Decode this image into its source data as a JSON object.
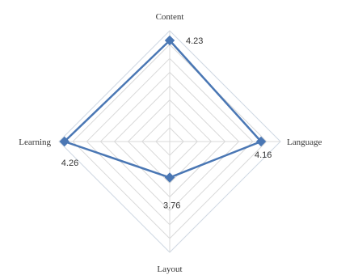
{
  "chart_data": {
    "type": "radar",
    "title": "",
    "categories": [
      "Content",
      "Language",
      "Layout",
      "Learning"
    ],
    "series": [
      {
        "values": [
          4.23,
          4.16,
          3.76,
          4.26
        ],
        "labels": [
          "4.23",
          "4.16",
          "3.76",
          "4.26"
        ],
        "color": "#4a77b4"
      }
    ],
    "rlim": [
      3.5,
      4.3
    ],
    "gridlines": true,
    "grid_color": "#d9d9d9",
    "legend": "none"
  }
}
